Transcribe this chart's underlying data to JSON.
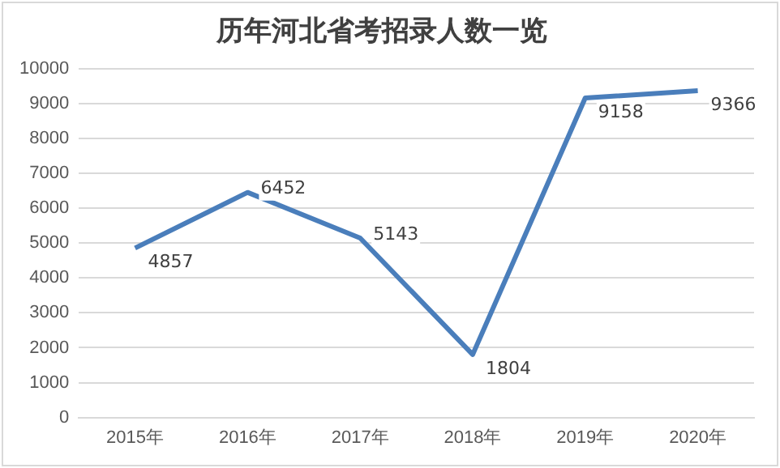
{
  "chart_data": {
    "type": "line",
    "title": "历年河北省考招录人数一览",
    "categories": [
      "2015年",
      "2016年",
      "2017年",
      "2018年",
      "2019年",
      "2020年"
    ],
    "values": [
      4857,
      6452,
      5143,
      1804,
      9158,
      9366
    ],
    "color": "#4a7ebb",
    "ylim": [
      0,
      10000
    ],
    "yticks": [
      0,
      1000,
      2000,
      3000,
      4000,
      5000,
      6000,
      7000,
      8000,
      9000,
      10000
    ],
    "grid": "y",
    "legend": false,
    "marker": "none",
    "line_style": "solid",
    "data_labels": true
  }
}
